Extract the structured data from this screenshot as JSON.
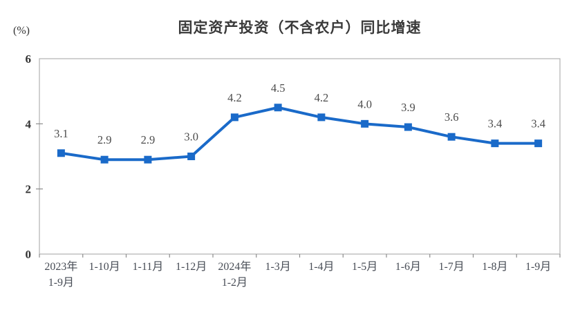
{
  "chart_data": {
    "type": "line",
    "title": "固定资产投资（不含农户）同比增速",
    "unit_label": "(%)",
    "categories": [
      "2023年\n1-9月",
      "1-10月",
      "1-11月",
      "1-12月",
      "2024年\n1-2月",
      "1-3月",
      "1-4月",
      "1-5月",
      "1-6月",
      "1-7月",
      "1-8月",
      "1-9月"
    ],
    "values": [
      3.1,
      2.9,
      2.9,
      3.0,
      4.2,
      4.5,
      4.2,
      4.0,
      3.9,
      3.6,
      3.4,
      3.4
    ],
    "ylim": [
      0,
      6
    ],
    "yticks": [
      0,
      2,
      4,
      6
    ],
    "xlabel": "",
    "ylabel": "(%)",
    "grid": false,
    "legend": "none",
    "line_color": "#1a6ac9",
    "marker": "square",
    "border_color": "#b0b0b0"
  }
}
